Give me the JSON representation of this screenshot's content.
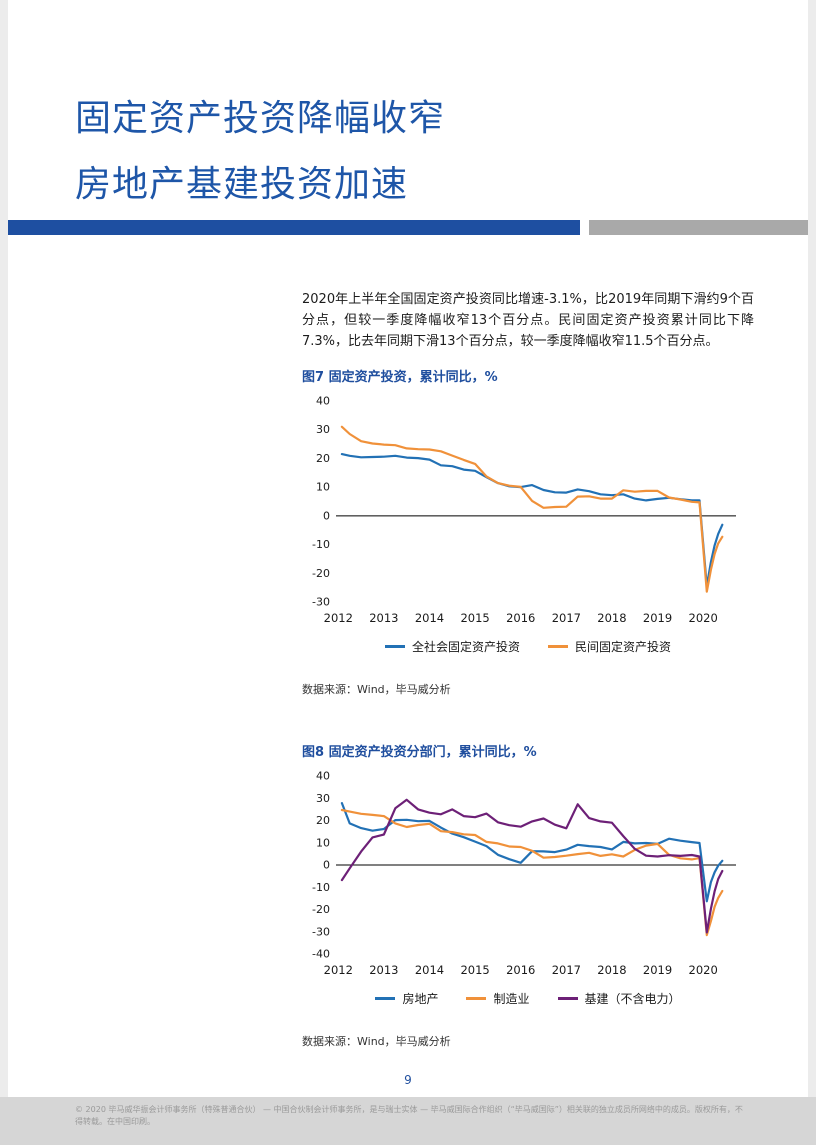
{
  "page": {
    "title_line1": "固定资产投资降幅收窄",
    "title_line2": "房地产基建投资加速",
    "body_paragraph": "2020年上半年全国固定资产投资同比增速-3.1%，比2019年同期下滑约9个百分点，但较一季度降幅收窄13个百分点。民间固定资产投资累计同比下降7.3%，比去年同期下滑13个百分点，较一季度降幅收窄11.5个百分点。",
    "page_number": "9",
    "footer": "© 2020 毕马威华振会计师事务所（特殊普通合伙） — 中国合伙制会计师事务所，是与瑞士实体 — 毕马威国际合作组织（“毕马威国际”）相关联的独立成员所网络中的成员。版权所有，不得转载。在中国印刷。"
  },
  "theme": {
    "title_blue": "#1e56a8",
    "divider_blue": "#1e4fa1",
    "divider_gray": "#a9a9a9",
    "series_blue": "#2271b5",
    "series_orange": "#f0913a",
    "series_purple": "#6d2077"
  },
  "chart_data": [
    {
      "type": "line",
      "title": "图7 固定资产投资，累计同比，%",
      "source": "数据来源：Wind，毕马威分析",
      "xlabel": "",
      "ylabel": "",
      "xlim": [
        2011.95,
        2020.72
      ],
      "ylim": [
        -30,
        40
      ],
      "ytick_step": 10,
      "xticks": [
        2012,
        2013,
        2014,
        2015,
        2016,
        2017,
        2018,
        2019,
        2020
      ],
      "grid": false,
      "legend_position": "bottom",
      "x": [
        2012.08,
        2012.25,
        2012.5,
        2012.75,
        2013,
        2013.25,
        2013.5,
        2013.75,
        2014,
        2014.25,
        2014.5,
        2014.75,
        2015,
        2015.25,
        2015.5,
        2015.75,
        2016,
        2016.25,
        2016.5,
        2016.75,
        2017,
        2017.25,
        2017.5,
        2017.75,
        2018,
        2018.25,
        2018.5,
        2018.75,
        2019,
        2019.25,
        2019.5,
        2019.75,
        2019.92,
        2020.08,
        2020.17,
        2020.25,
        2020.33,
        2020.42
      ],
      "series": [
        {
          "name": "全社会固定资产投资",
          "color": "#2271b5",
          "y": [
            21.5,
            20.9,
            20.4,
            20.5,
            20.6,
            20.9,
            20.3,
            20.1,
            19.6,
            17.6,
            17.3,
            16.1,
            15.7,
            13.5,
            11.4,
            10.3,
            10.0,
            10.7,
            9.0,
            8.2,
            8.1,
            9.2,
            8.6,
            7.5,
            7.2,
            7.5,
            6.0,
            5.4,
            5.9,
            6.3,
            5.8,
            5.4,
            5.4,
            -24.5,
            -16.1,
            -10.3,
            -6.3,
            -3.1
          ]
        },
        {
          "name": "民间固定资产投资",
          "color": "#f0913a",
          "y": [
            31.0,
            28.5,
            26.0,
            25.2,
            24.8,
            24.6,
            23.5,
            23.2,
            23.1,
            22.5,
            21.0,
            19.5,
            18.1,
            13.7,
            11.4,
            10.5,
            10.1,
            5.2,
            2.8,
            3.1,
            3.2,
            6.7,
            6.8,
            6.0,
            6.0,
            8.9,
            8.4,
            8.7,
            8.7,
            6.4,
            5.7,
            4.9,
            4.7,
            -26.4,
            -18.8,
            -13.3,
            -9.6,
            -7.3
          ]
        }
      ]
    },
    {
      "type": "line",
      "title": "图8 固定资产投资分部门，累计同比，%",
      "source": "数据来源：Wind，毕马威分析",
      "xlabel": "",
      "ylabel": "",
      "xlim": [
        2011.95,
        2020.72
      ],
      "ylim": [
        -40,
        40
      ],
      "ytick_step": 10,
      "xticks": [
        2012,
        2013,
        2014,
        2015,
        2016,
        2017,
        2018,
        2019,
        2020
      ],
      "grid": false,
      "legend_position": "bottom",
      "x": [
        2012.08,
        2012.25,
        2012.5,
        2012.75,
        2013,
        2013.25,
        2013.5,
        2013.75,
        2014,
        2014.25,
        2014.5,
        2014.75,
        2015,
        2015.25,
        2015.5,
        2015.75,
        2016,
        2016.25,
        2016.5,
        2016.75,
        2017,
        2017.25,
        2017.5,
        2017.75,
        2018,
        2018.25,
        2018.5,
        2018.75,
        2019,
        2019.25,
        2019.5,
        2019.75,
        2019.92,
        2020.08,
        2020.17,
        2020.25,
        2020.33,
        2020.42
      ],
      "series": [
        {
          "name": "房地产",
          "color": "#2271b5",
          "y": [
            27.8,
            18.7,
            16.6,
            15.4,
            16.2,
            20.2,
            20.3,
            19.7,
            19.8,
            16.8,
            14.1,
            12.5,
            10.5,
            8.5,
            4.6,
            2.6,
            1.0,
            6.2,
            6.1,
            5.8,
            6.9,
            9.1,
            8.5,
            8.1,
            7.0,
            10.4,
            9.7,
            9.9,
            9.5,
            11.8,
            10.9,
            10.3,
            9.9,
            -16.3,
            -7.7,
            -3.3,
            -0.3,
            1.9
          ]
        },
        {
          "name": "制造业",
          "color": "#f0913a",
          "y": [
            24.7,
            24.0,
            23.0,
            22.5,
            22.0,
            18.7,
            17.1,
            18.0,
            18.5,
            15.2,
            14.8,
            13.8,
            13.5,
            10.4,
            9.7,
            8.3,
            8.1,
            6.4,
            3.3,
            3.6,
            4.2,
            4.9,
            5.5,
            4.1,
            4.8,
            3.8,
            6.8,
            8.7,
            9.5,
            4.6,
            3.0,
            2.5,
            3.1,
            -31.5,
            -25.2,
            -18.8,
            -14.8,
            -11.7
          ]
        },
        {
          "name": "基建（不含电力）",
          "color": "#6d2077",
          "y": [
            -6.8,
            -1.5,
            6.0,
            12.4,
            13.7,
            25.5,
            29.3,
            25.0,
            23.5,
            22.8,
            25.0,
            22.0,
            21.5,
            23.1,
            19.2,
            17.9,
            17.2,
            19.6,
            20.9,
            18.1,
            16.5,
            27.3,
            21.1,
            19.6,
            19.0,
            13.0,
            7.3,
            4.2,
            3.8,
            4.4,
            4.1,
            4.5,
            3.8,
            -30.3,
            -19.7,
            -11.8,
            -6.3,
            -2.7
          ]
        }
      ]
    }
  ]
}
